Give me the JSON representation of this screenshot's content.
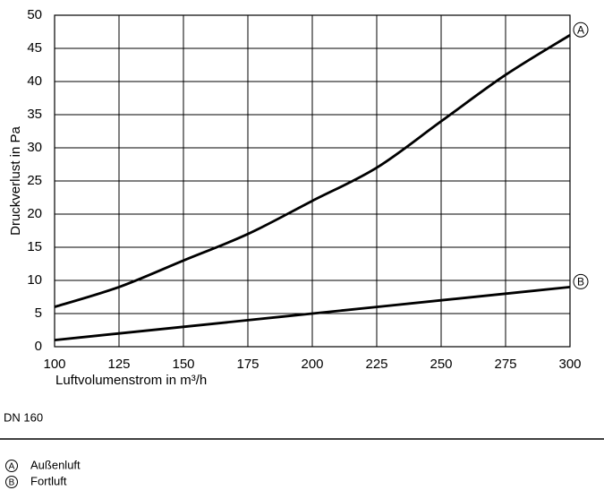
{
  "chart_data": {
    "type": "line",
    "x": [
      100,
      125,
      150,
      175,
      200,
      225,
      250,
      275,
      300
    ],
    "series": [
      {
        "name": "Außenluft",
        "marker": "A",
        "color": "#000000",
        "values": [
          6,
          9,
          13,
          17,
          22,
          27,
          34,
          41,
          47
        ]
      },
      {
        "name": "Fortluft",
        "marker": "B",
        "color": "#000000",
        "values": [
          1,
          2,
          3,
          4,
          5,
          6,
          7,
          8,
          9
        ]
      }
    ],
    "xlabel": "Luftvolumenstrom in m³/h",
    "ylabel": "Druckverlust in Pa",
    "xlim": [
      100,
      300
    ],
    "xticks": [
      100,
      125,
      150,
      175,
      200,
      225,
      250,
      275,
      300
    ],
    "ylim": [
      0,
      50
    ],
    "yticks": [
      0,
      5,
      10,
      15,
      20,
      25,
      30,
      35,
      40,
      45,
      50
    ],
    "grid": true,
    "caption": "DN 160"
  }
}
